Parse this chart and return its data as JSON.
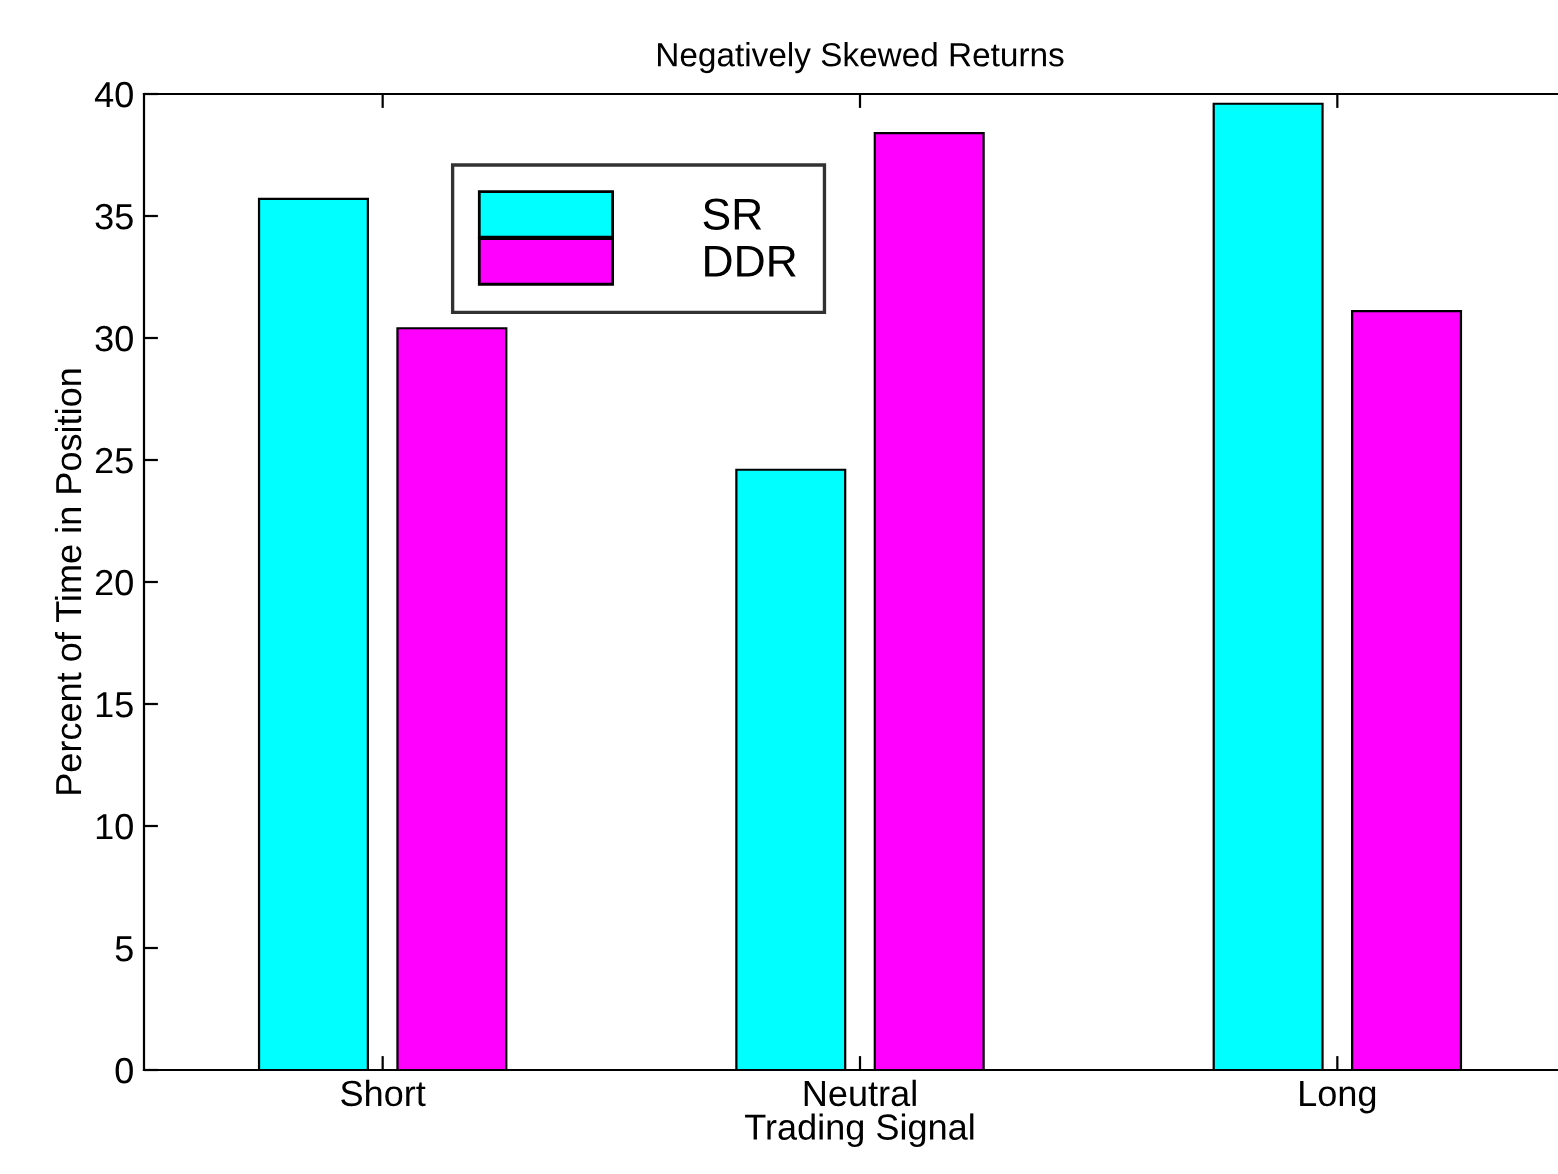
{
  "chart_data": {
    "type": "bar",
    "title": "Negatively Skewed Returns",
    "xlabel": "Trading Signal",
    "ylabel": "Percent of Time in Position",
    "categories": [
      "Short",
      "Neutral",
      "Long"
    ],
    "series": [
      {
        "name": "SR",
        "color": "#00ffff",
        "values": [
          35.7,
          24.6,
          39.6
        ]
      },
      {
        "name": "DDR",
        "color": "#ff00ff",
        "values": [
          30.4,
          38.4,
          31.1
        ]
      }
    ],
    "ylim": [
      0,
      40
    ],
    "yticks": [
      0,
      5,
      10,
      15,
      20,
      25,
      30,
      35,
      40
    ],
    "grid": false,
    "legend": "top left"
  }
}
